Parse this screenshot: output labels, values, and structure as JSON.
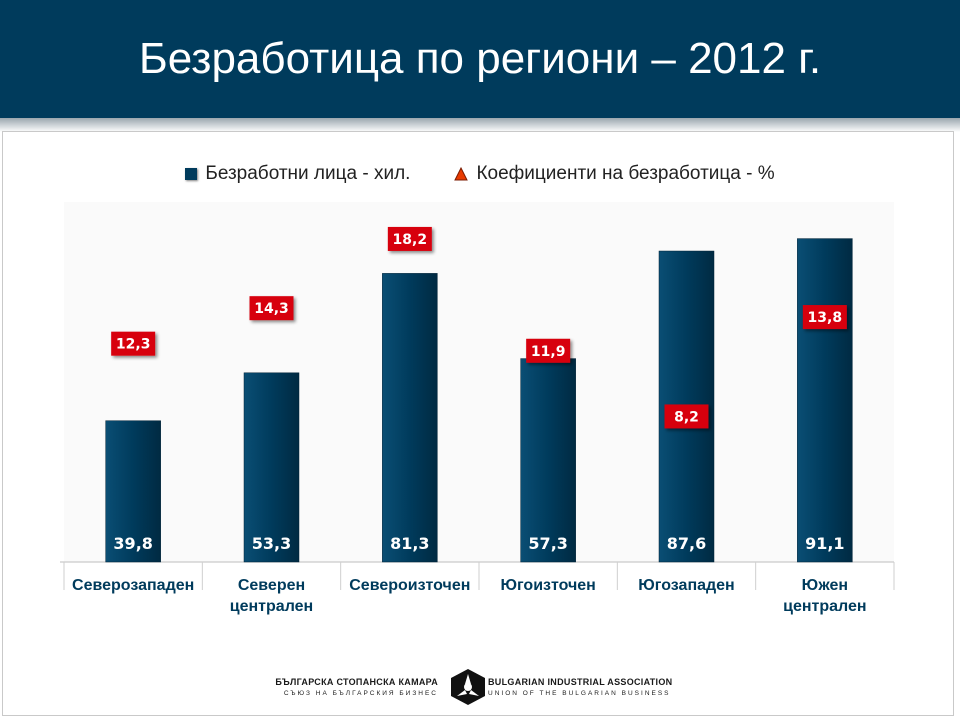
{
  "header": {
    "title": "Безработица по региони – 2012 г."
  },
  "legend": {
    "bar_label": "Безработни лица - хил.",
    "rate_label": "Коефициенти на безработица - %"
  },
  "colors": {
    "bar": "#003b5c",
    "rate_box": "#d7000f",
    "rate_marker": "#e83a00"
  },
  "chart_data": {
    "type": "bar",
    "categories": [
      [
        "Северозападен"
      ],
      [
        "Северен",
        "централен"
      ],
      [
        "Североизточен"
      ],
      [
        "Югоизточен"
      ],
      [
        "Югозападен"
      ],
      [
        "Южен",
        "централен"
      ]
    ],
    "series": [
      {
        "name": "Безработни лица - хил.",
        "type": "bar",
        "values": [
          39.8,
          53.3,
          81.3,
          57.3,
          87.6,
          91.1
        ],
        "labels": [
          "39,8",
          "53,3",
          "81,3",
          "57,3",
          "87,6",
          "91,1"
        ]
      },
      {
        "name": "Коефициенти на безработица - %",
        "type": "marker",
        "values": [
          12.3,
          14.3,
          18.2,
          11.9,
          8.2,
          13.8
        ],
        "labels": [
          "12,3",
          "14,3",
          "18,2",
          "11,9",
          "8,2",
          "13,8"
        ]
      }
    ],
    "ylim_bars": [
      0,
      100
    ],
    "ylim_rates": [
      0,
      20
    ],
    "grid": false,
    "legend_position": "top"
  },
  "footer": {
    "logo_left_main": "БЪЛГАРСКА СТОПАНСКА КАМАРА",
    "logo_left_sub": "СЪЮЗ НА БЪЛГАРСКИЯ БИЗНЕС",
    "logo_right_main": "BULGARIAN INDUSTRIAL ASSOCIATION",
    "logo_right_sub": "UNION OF THE BULGARIAN BUSINESS"
  }
}
